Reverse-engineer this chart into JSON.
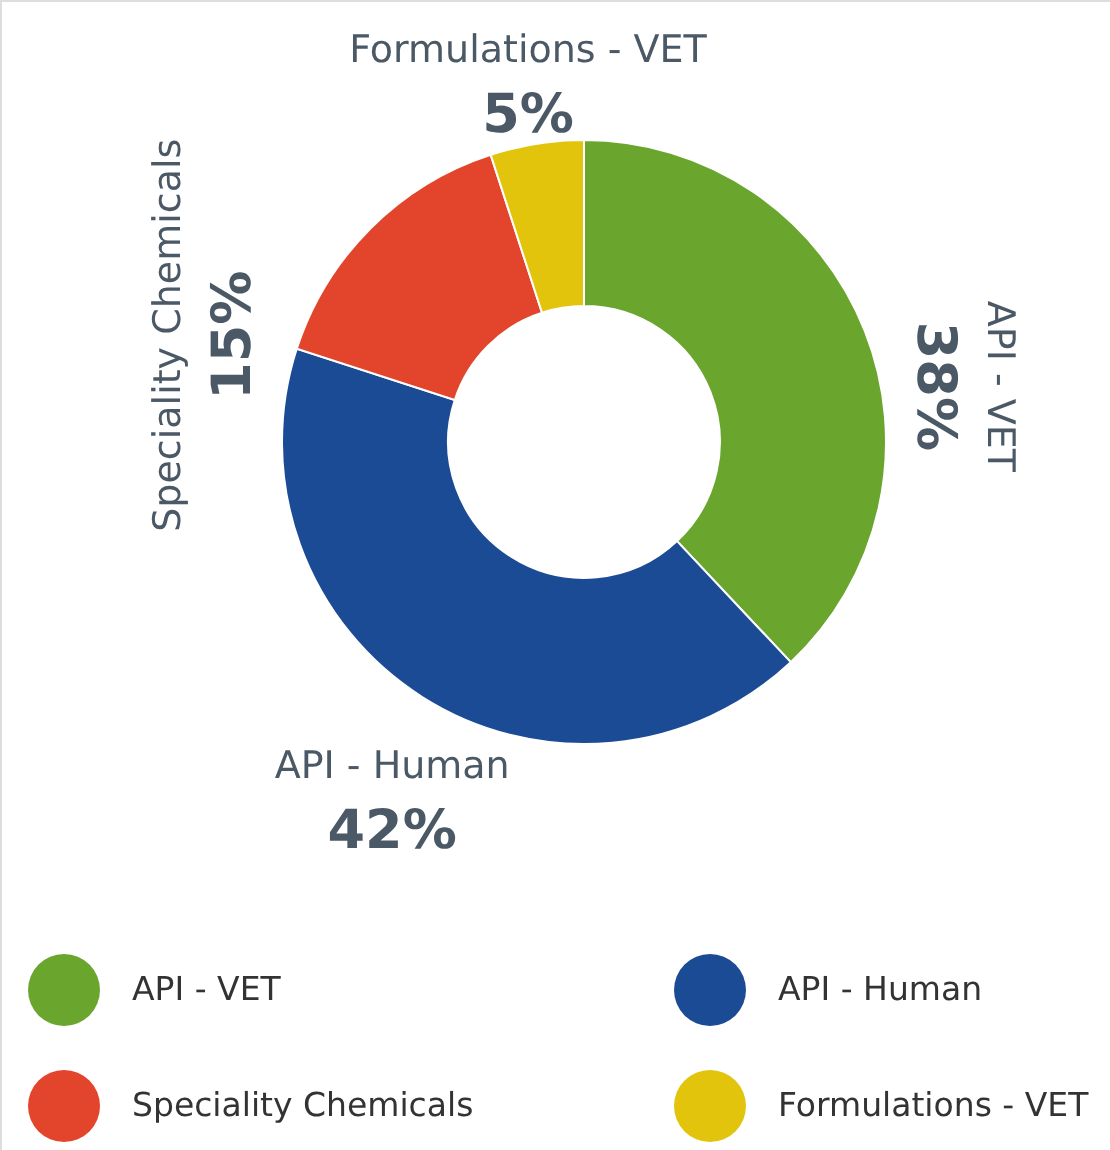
{
  "chart_data": {
    "type": "donut",
    "categories": [
      "API - VET",
      "API - Human",
      "Speciality Chemicals",
      "Formulations - VET"
    ],
    "values": [
      38,
      42,
      15,
      5
    ],
    "colors": [
      "#6aa52e",
      "#1c4b96",
      "#e2452b",
      "#e3c40c"
    ],
    "value_labels": [
      "38%",
      "42%",
      "15%",
      "5%"
    ],
    "legend": "bottom"
  }
}
